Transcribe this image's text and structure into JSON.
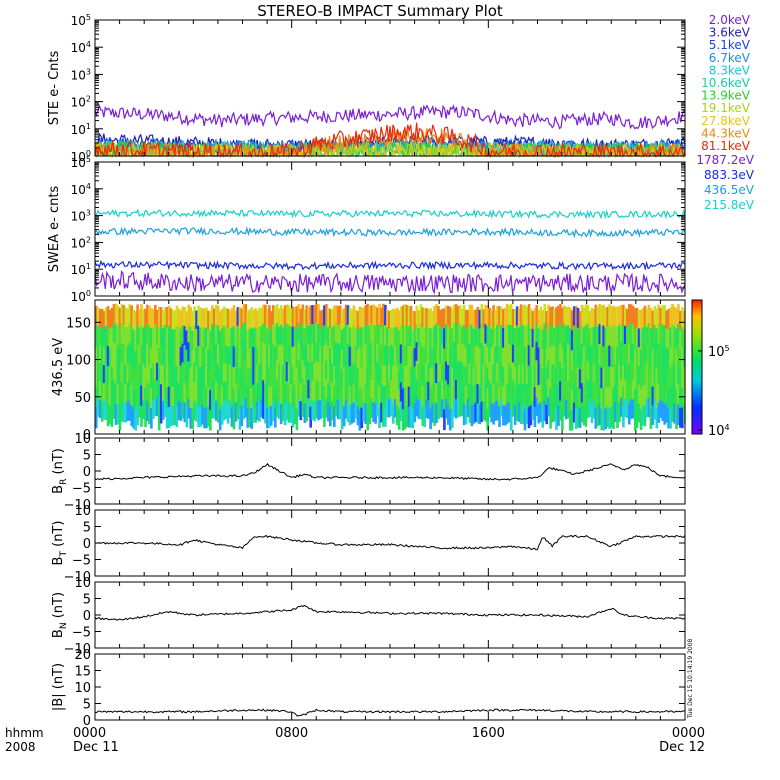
{
  "title": "STEREO-B IMPACT Summary Plot",
  "stamp": "Tue Dec 15 10:14:19 2008",
  "x_axis": {
    "row1_label": "hhmm",
    "row2_label": "2008",
    "ticks": [
      {
        "value": 0,
        "label": "0000",
        "sub": "Dec 11"
      },
      {
        "value": 8,
        "label": "0800",
        "sub": ""
      },
      {
        "value": 16,
        "label": "1600",
        "sub": ""
      },
      {
        "value": 24,
        "label": "0000",
        "sub": "Dec 12"
      }
    ]
  },
  "colors": {
    "purple": "#7a1fd6",
    "indigo": "#2020b0",
    "blue": "#1a44e6",
    "lightblue": "#1e90dc",
    "cyan": "#18c8d0",
    "teal": "#18d0a0",
    "green": "#2ad02a",
    "yellowgreen": "#a8d418",
    "yellow": "#e8c418",
    "orange": "#f08818",
    "red": "#e82a0a",
    "swea_purple": "#7a1fd6",
    "swea_blue": "#1a2ae0",
    "swea_lightblue": "#1aa0e0",
    "swea_cyan": "#18d0c8"
  },
  "chart_data": [
    {
      "panel": "ste",
      "type": "line",
      "ylabel": "STE e- Cnts",
      "yscale": "log",
      "ylim": [
        1,
        100000
      ],
      "yticks": [
        {
          "base": "10",
          "exp": "0"
        },
        {
          "base": "10",
          "exp": "1"
        },
        {
          "base": "10",
          "exp": "2"
        },
        {
          "base": "10",
          "exp": "3"
        },
        {
          "base": "10",
          "exp": "4"
        },
        {
          "base": "10",
          "exp": "5"
        }
      ],
      "xlim": [
        0,
        24
      ],
      "series": [
        {
          "name": "2.0keV",
          "color": "#7a1fd6",
          "x": [
            0,
            1,
            2,
            3,
            4,
            5,
            6,
            7,
            8,
            9,
            10,
            11,
            12,
            13,
            14,
            15,
            16,
            17,
            18,
            19,
            20,
            21,
            22,
            23,
            24
          ],
          "y": [
            40,
            38,
            34,
            30,
            24,
            20,
            22,
            24,
            26,
            28,
            30,
            32,
            34,
            38,
            42,
            40,
            30,
            20,
            20,
            18,
            22,
            24,
            16,
            20,
            30
          ]
        },
        {
          "name": "3.6keV",
          "color": "#2020b0",
          "x": [
            0,
            2,
            4,
            6,
            8,
            10,
            12,
            14,
            16,
            18,
            20,
            22,
            24
          ],
          "y": [
            4,
            3.5,
            3,
            2.5,
            2.5,
            2.5,
            3,
            3.5,
            3,
            3,
            2.5,
            2.5,
            3
          ]
        },
        {
          "name": "5.1keV",
          "color": "#1a44e6",
          "x": [
            0,
            2,
            4,
            6,
            8,
            10,
            12,
            14,
            16,
            18,
            20,
            22,
            24
          ],
          "y": [
            3,
            2.5,
            2.2,
            2,
            2,
            2.2,
            2.5,
            3,
            2.5,
            2.5,
            2,
            2,
            2.5
          ]
        },
        {
          "name": "6.7keV",
          "color": "#1e90dc",
          "x": [
            0,
            4,
            8,
            12,
            16,
            20,
            24
          ],
          "y": [
            2,
            1.8,
            1.6,
            2,
            1.8,
            1.6,
            1.8
          ]
        },
        {
          "name": "8.3keV",
          "color": "#18c8d0",
          "x": [
            0,
            4,
            8,
            12,
            16,
            20,
            24
          ],
          "y": [
            1.8,
            1.6,
            1.5,
            1.8,
            1.6,
            1.5,
            1.6
          ]
        },
        {
          "name": "10.6keV",
          "color": "#18d0a0",
          "x": [
            0,
            4,
            8,
            12,
            16,
            20,
            24
          ],
          "y": [
            1.7,
            1.5,
            1.4,
            1.7,
            1.5,
            1.4,
            1.5
          ]
        },
        {
          "name": "13.9keV",
          "color": "#2ad02a",
          "x": [
            0,
            4,
            8,
            12,
            16,
            20,
            24
          ],
          "y": [
            1.6,
            1.4,
            1.3,
            1.6,
            1.4,
            1.3,
            1.4
          ]
        },
        {
          "name": "19.1keV",
          "color": "#a8d418",
          "x": [
            0,
            4,
            8,
            12,
            16,
            20,
            24
          ],
          "y": [
            1.5,
            1.3,
            1.3,
            1.5,
            1.3,
            1.2,
            1.3
          ]
        },
        {
          "name": "27.8keV",
          "color": "#e8c418",
          "x": [
            0,
            4,
            8,
            12,
            16,
            20,
            24
          ],
          "y": [
            1.5,
            1.3,
            1.2,
            1.5,
            1.3,
            1.2,
            1.3
          ]
        },
        {
          "name": "44.3keV",
          "color": "#f08818",
          "x": [
            0,
            4,
            8,
            11,
            12,
            13,
            14,
            16,
            20,
            24
          ],
          "y": [
            1.6,
            1.3,
            1.2,
            4,
            5,
            6,
            5,
            1.4,
            1.2,
            1.3
          ]
        },
        {
          "name": "81.1keV",
          "color": "#e82a0a",
          "x": [
            0,
            4,
            8,
            11,
            12,
            13,
            14,
            16,
            20,
            24
          ],
          "y": [
            1.8,
            1.4,
            1.3,
            5,
            7,
            8,
            6,
            1.5,
            1.3,
            1.4
          ]
        }
      ]
    },
    {
      "panel": "swea",
      "type": "line",
      "ylabel": "SWEA e- cnts",
      "yscale": "log",
      "ylim": [
        1,
        100000
      ],
      "yticks": [
        {
          "base": "10",
          "exp": "0"
        },
        {
          "base": "10",
          "exp": "1"
        },
        {
          "base": "10",
          "exp": "2"
        },
        {
          "base": "10",
          "exp": "3"
        },
        {
          "base": "10",
          "exp": "4"
        },
        {
          "base": "10",
          "exp": "5"
        }
      ],
      "xlim": [
        0,
        24
      ],
      "series": [
        {
          "name": "1787.2eV",
          "color": "#7a1fd6",
          "x": [
            0,
            4,
            8,
            12,
            16,
            20,
            24
          ],
          "y": [
            4,
            3,
            3,
            3,
            3,
            3,
            3
          ]
        },
        {
          "name": "883.3eV",
          "color": "#1a2ae0",
          "x": [
            0,
            4,
            8,
            12,
            16,
            20,
            24
          ],
          "y": [
            15,
            14,
            13,
            14,
            14,
            13,
            14
          ]
        },
        {
          "name": "436.5eV",
          "color": "#1aa0e0",
          "x": [
            0,
            4,
            8,
            12,
            16,
            20,
            24
          ],
          "y": [
            250,
            270,
            240,
            230,
            250,
            220,
            240
          ]
        },
        {
          "name": "215.8eV",
          "color": "#18d0c8",
          "x": [
            0,
            4,
            8,
            12,
            16,
            20,
            24
          ],
          "y": [
            1200,
            1250,
            1150,
            1200,
            1150,
            1100,
            1150
          ]
        }
      ]
    },
    {
      "panel": "pad",
      "type": "heatmap",
      "ylabel": "436.5 eV",
      "ylim": [
        0,
        180
      ],
      "yticks": [
        "0",
        "50",
        "100",
        "150"
      ],
      "xlim": [
        0,
        24
      ],
      "colorbar": {
        "scale": "log",
        "range": [
          10000,
          300000
        ],
        "ticks": [
          {
            "base": "10",
            "exp": "4"
          },
          {
            "base": "10",
            "exp": "5"
          }
        ]
      }
    },
    {
      "panel": "br",
      "type": "line",
      "ylabel": "B",
      "ylabel_sub": "R",
      "ylabel_unit": "(nT)",
      "ylim": [
        -10,
        10
      ],
      "yticks": [
        "10",
        "5",
        "0",
        "−5",
        "−10"
      ],
      "xlim": [
        0,
        24
      ],
      "series": [
        {
          "name": "",
          "x": [
            0,
            2,
            4,
            6,
            6.5,
            7,
            7.5,
            8,
            8.5,
            9,
            10,
            12,
            14,
            16,
            17,
            18,
            18.5,
            19,
            19.5,
            20,
            21,
            21.5,
            22,
            22.5,
            23,
            24
          ],
          "y": [
            -2.5,
            -2,
            -1.5,
            -1.5,
            -0.5,
            2,
            0,
            -2,
            -1,
            -2,
            -2,
            -2,
            -2,
            -2.5,
            -2.5,
            -2,
            1,
            0,
            -1,
            0,
            2,
            0.5,
            2,
            1,
            -1.5,
            -2
          ]
        }
      ]
    },
    {
      "panel": "bt",
      "type": "line",
      "ylabel": "B",
      "ylabel_sub": "T",
      "ylabel_unit": "(nT)",
      "ylim": [
        -10,
        10
      ],
      "yticks": [
        "10",
        "5",
        "0",
        "−5",
        "−10"
      ],
      "xlim": [
        0,
        24
      ],
      "series": [
        {
          "name": "",
          "x": [
            0,
            2,
            3.5,
            4,
            5,
            6,
            6.5,
            7,
            8,
            9,
            10,
            12,
            14,
            16,
            17,
            18,
            18.2,
            18.6,
            19,
            20,
            21,
            22,
            24
          ],
          "y": [
            0,
            0,
            -0.5,
            1,
            -0.5,
            -1.5,
            2,
            2,
            1,
            0,
            -0.5,
            -0.5,
            -1.5,
            -1.5,
            -1,
            -2,
            2,
            -1,
            2,
            2,
            -1,
            2,
            2
          ]
        }
      ]
    },
    {
      "panel": "bn",
      "type": "line",
      "ylabel": "B",
      "ylabel_sub": "N",
      "ylabel_unit": "(nT)",
      "ylim": [
        -10,
        10
      ],
      "yticks": [
        "10",
        "5",
        "0",
        "−5",
        "−10"
      ],
      "xlim": [
        0,
        24
      ],
      "series": [
        {
          "name": "",
          "x": [
            0,
            1,
            2,
            3,
            4,
            6,
            8,
            8.5,
            9,
            10,
            12,
            14,
            16,
            18,
            20,
            21,
            21.5,
            22,
            23,
            24
          ],
          "y": [
            -1,
            -1.5,
            -0.5,
            1,
            0,
            0.5,
            1.5,
            3,
            1,
            1,
            0.5,
            0.5,
            0,
            0,
            -0.5,
            2,
            0,
            -0.5,
            -1,
            -1
          ]
        }
      ]
    },
    {
      "panel": "bmag",
      "type": "line",
      "ylabel": "|B| (nT)",
      "ylim": [
        0,
        20
      ],
      "yticks": [
        "20",
        "15",
        "10",
        "5",
        "0"
      ],
      "xlim": [
        0,
        24
      ],
      "series": [
        {
          "name": "",
          "x": [
            0,
            2,
            4,
            6,
            7,
            8,
            8.3,
            8.8,
            9,
            10,
            12,
            14,
            16,
            18,
            20,
            22,
            24
          ],
          "y": [
            2.5,
            2.5,
            2.5,
            3,
            3,
            2.5,
            1,
            2.5,
            3,
            2.5,
            2.5,
            2.5,
            3,
            3,
            2.5,
            2.5,
            2.5
          ]
        }
      ]
    }
  ]
}
